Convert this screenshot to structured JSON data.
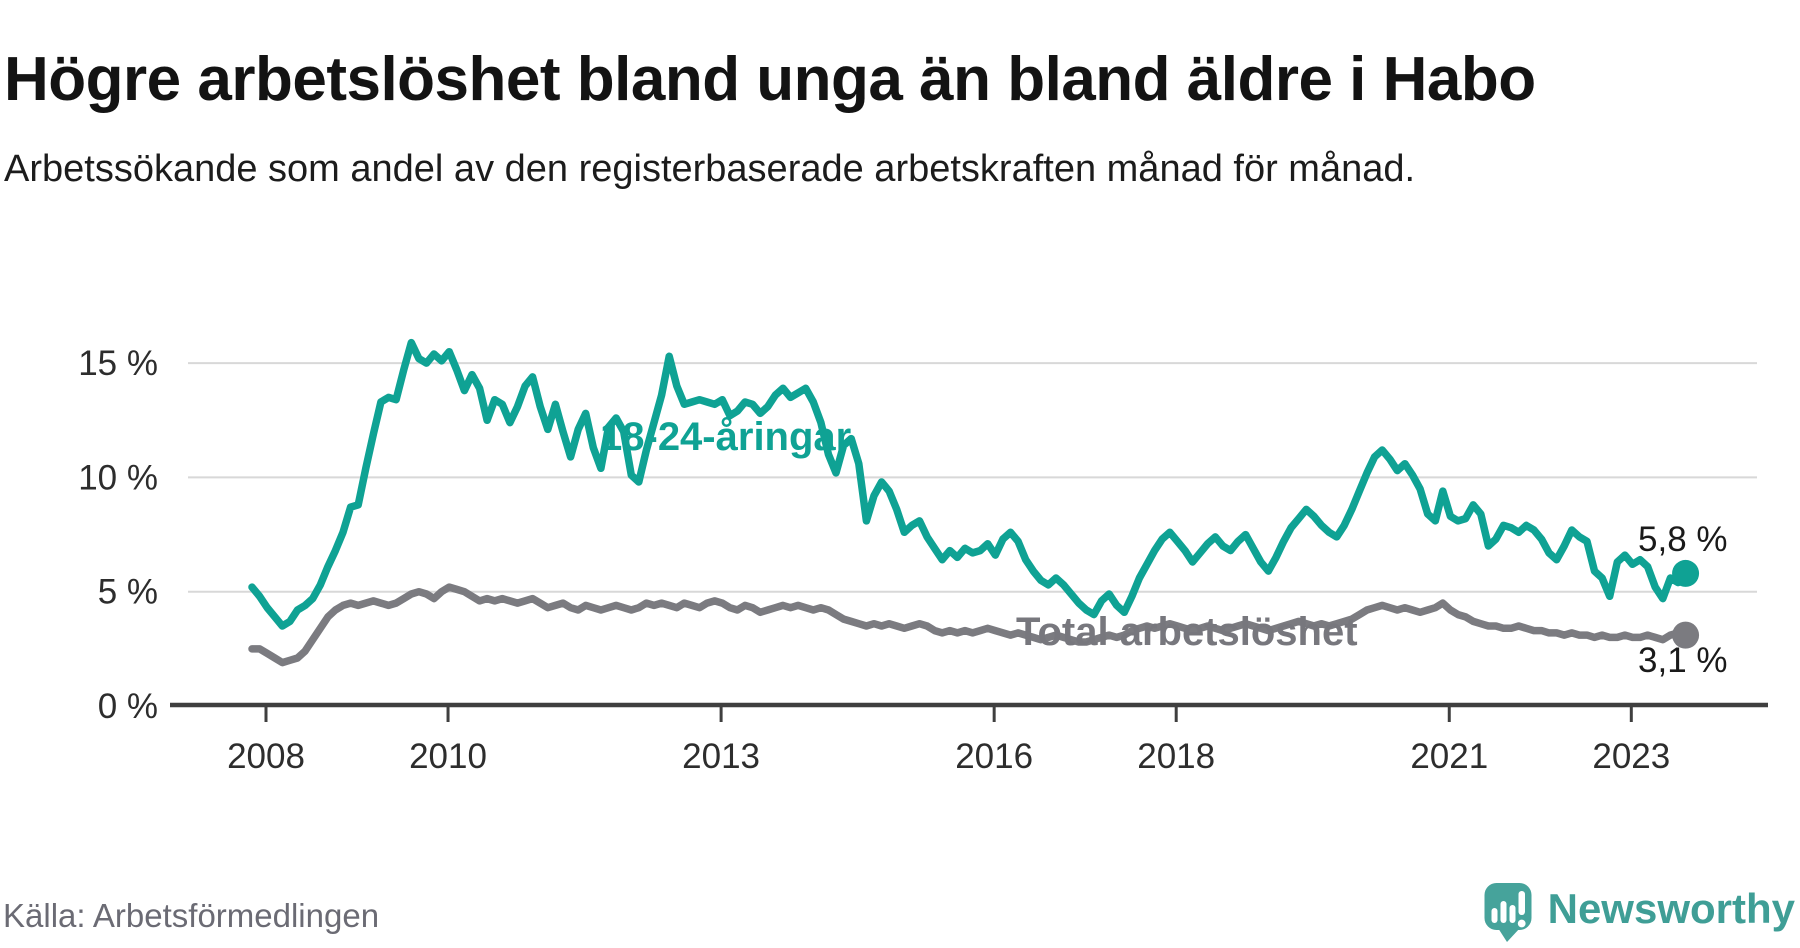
{
  "header": {
    "title": "Högre arbetslöshet bland unga än bland äldre i Habo",
    "subtitle": "Arbetssökande som andel av den registerbaserade arbetskraften månad för månad."
  },
  "footer": {
    "source": "Källa: Arbetsförmedlingen",
    "brand": "Newsworthy"
  },
  "colors": {
    "youth_line": "#0fa294",
    "total_line": "#7b7b80",
    "gridline": "#d8d8d8",
    "axis": "#3f3f3f",
    "tick_text": "#2d2d2d",
    "end_label_text": "#1a1a1a",
    "source_text": "#6b6b74",
    "brand_teal": "#3f9e96",
    "logo_bubble": "#46a39b"
  },
  "chart_data": {
    "type": "line",
    "title": "Högre arbetslöshet bland unga än bland äldre i Habo",
    "subtitle": "Arbetssökande som andel av den registerbaserade arbetskraften månad för månad.",
    "xlabel": "",
    "ylabel": "",
    "frequency": "monthly",
    "x_start": {
      "year": 2008,
      "month": 1
    },
    "x_end": {
      "year": 2023,
      "month": 10
    },
    "ylim": [
      0,
      16.6
    ],
    "grid": true,
    "legend_position": "inline-labels",
    "yticks": [
      {
        "value": 0,
        "label": "0 %"
      },
      {
        "value": 5,
        "label": "5 %"
      },
      {
        "value": 10,
        "label": "10 %"
      },
      {
        "value": 15,
        "label": "15 %"
      }
    ],
    "xticks": [
      {
        "year": 2008,
        "label": "2008"
      },
      {
        "year": 2010,
        "label": "2010"
      },
      {
        "year": 2013,
        "label": "2013"
      },
      {
        "year": 2016,
        "label": "2016"
      },
      {
        "year": 2018,
        "label": "2018"
      },
      {
        "year": 2021,
        "label": "2021"
      },
      {
        "year": 2023,
        "label": "2023"
      }
    ],
    "series": [
      {
        "name": "18-24-åringar",
        "color": "#0fa294",
        "end_label": "5,8 %",
        "end_value": 5.8,
        "values": [
          5.2,
          4.8,
          4.3,
          3.9,
          3.5,
          3.7,
          4.2,
          4.4,
          4.7,
          5.3,
          6.1,
          6.8,
          7.6,
          8.7,
          8.8,
          10.4,
          11.9,
          13.3,
          13.5,
          13.4,
          14.7,
          15.9,
          15.2,
          15.0,
          15.4,
          15.1,
          15.5,
          14.7,
          13.8,
          14.5,
          13.9,
          12.5,
          13.4,
          13.2,
          12.4,
          13.1,
          14.0,
          14.4,
          13.1,
          12.1,
          13.2,
          12.0,
          10.9,
          12.1,
          12.8,
          11.3,
          10.4,
          12.2,
          12.6,
          12.0,
          10.1,
          9.8,
          11.2,
          12.4,
          13.6,
          15.3,
          14.0,
          13.2,
          13.3,
          13.4,
          13.3,
          13.2,
          13.4,
          12.7,
          12.9,
          13.3,
          13.2,
          12.8,
          13.1,
          13.6,
          13.9,
          13.5,
          13.7,
          13.9,
          13.3,
          12.4,
          11.0,
          10.2,
          11.4,
          11.7,
          10.6,
          8.1,
          9.2,
          9.8,
          9.4,
          8.6,
          7.6,
          7.9,
          8.1,
          7.4,
          6.9,
          6.4,
          6.8,
          6.5,
          6.9,
          6.7,
          6.8,
          7.1,
          6.6,
          7.3,
          7.6,
          7.2,
          6.4,
          5.9,
          5.5,
          5.3,
          5.6,
          5.3,
          4.9,
          4.5,
          4.2,
          4.0,
          4.6,
          4.9,
          4.4,
          4.1,
          4.8,
          5.6,
          6.2,
          6.8,
          7.3,
          7.6,
          7.2,
          6.8,
          6.3,
          6.7,
          7.1,
          7.4,
          7.0,
          6.8,
          7.2,
          7.5,
          6.9,
          6.3,
          5.9,
          6.5,
          7.2,
          7.8,
          8.2,
          8.6,
          8.3,
          7.9,
          7.6,
          7.4,
          7.9,
          8.6,
          9.4,
          10.2,
          10.9,
          11.2,
          10.8,
          10.3,
          10.6,
          10.1,
          9.5,
          8.4,
          8.1,
          9.4,
          8.3,
          8.1,
          8.2,
          8.8,
          8.4,
          7.0,
          7.3,
          7.9,
          7.8,
          7.6,
          7.9,
          7.7,
          7.3,
          6.7,
          6.4,
          7.0,
          7.7,
          7.4,
          7.2,
          5.9,
          5.6,
          4.8,
          6.3,
          6.6,
          6.2,
          6.4,
          6.1,
          5.2,
          4.7,
          5.6,
          5.4,
          5.8
        ]
      },
      {
        "name": "Total arbetslöshet",
        "color": "#7b7b80",
        "end_label": "3,1 %",
        "end_value": 3.1,
        "values": [
          2.5,
          2.5,
          2.3,
          2.1,
          1.9,
          2.0,
          2.1,
          2.4,
          2.9,
          3.4,
          3.9,
          4.2,
          4.4,
          4.5,
          4.4,
          4.5,
          4.6,
          4.5,
          4.4,
          4.5,
          4.7,
          4.9,
          5.0,
          4.9,
          4.7,
          5.0,
          5.2,
          5.1,
          5.0,
          4.8,
          4.6,
          4.7,
          4.6,
          4.7,
          4.6,
          4.5,
          4.6,
          4.7,
          4.5,
          4.3,
          4.4,
          4.5,
          4.3,
          4.2,
          4.4,
          4.3,
          4.2,
          4.3,
          4.4,
          4.3,
          4.2,
          4.3,
          4.5,
          4.4,
          4.5,
          4.4,
          4.3,
          4.5,
          4.4,
          4.3,
          4.5,
          4.6,
          4.5,
          4.3,
          4.2,
          4.4,
          4.3,
          4.1,
          4.2,
          4.3,
          4.4,
          4.3,
          4.4,
          4.3,
          4.2,
          4.3,
          4.2,
          4.0,
          3.8,
          3.7,
          3.6,
          3.5,
          3.6,
          3.5,
          3.6,
          3.5,
          3.4,
          3.5,
          3.6,
          3.5,
          3.3,
          3.2,
          3.3,
          3.2,
          3.3,
          3.2,
          3.3,
          3.4,
          3.3,
          3.2,
          3.1,
          3.2,
          3.1,
          3.0,
          2.9,
          3.0,
          3.1,
          3.0,
          2.9,
          2.8,
          2.8,
          2.9,
          3.0,
          3.1,
          3.0,
          3.1,
          3.3,
          3.4,
          3.5,
          3.4,
          3.5,
          3.6,
          3.5,
          3.4,
          3.3,
          3.4,
          3.5,
          3.4,
          3.3,
          3.4,
          3.5,
          3.6,
          3.5,
          3.4,
          3.3,
          3.4,
          3.5,
          3.6,
          3.7,
          3.6,
          3.5,
          3.6,
          3.5,
          3.6,
          3.7,
          3.8,
          4.0,
          4.2,
          4.3,
          4.4,
          4.3,
          4.2,
          4.3,
          4.2,
          4.1,
          4.2,
          4.3,
          4.5,
          4.2,
          4.0,
          3.9,
          3.7,
          3.6,
          3.5,
          3.5,
          3.4,
          3.4,
          3.5,
          3.4,
          3.3,
          3.3,
          3.2,
          3.2,
          3.1,
          3.2,
          3.1,
          3.1,
          3.0,
          3.1,
          3.0,
          3.0,
          3.1,
          3.0,
          3.0,
          3.1,
          3.0,
          2.9,
          3.1,
          3.2,
          3.1
        ]
      }
    ]
  }
}
